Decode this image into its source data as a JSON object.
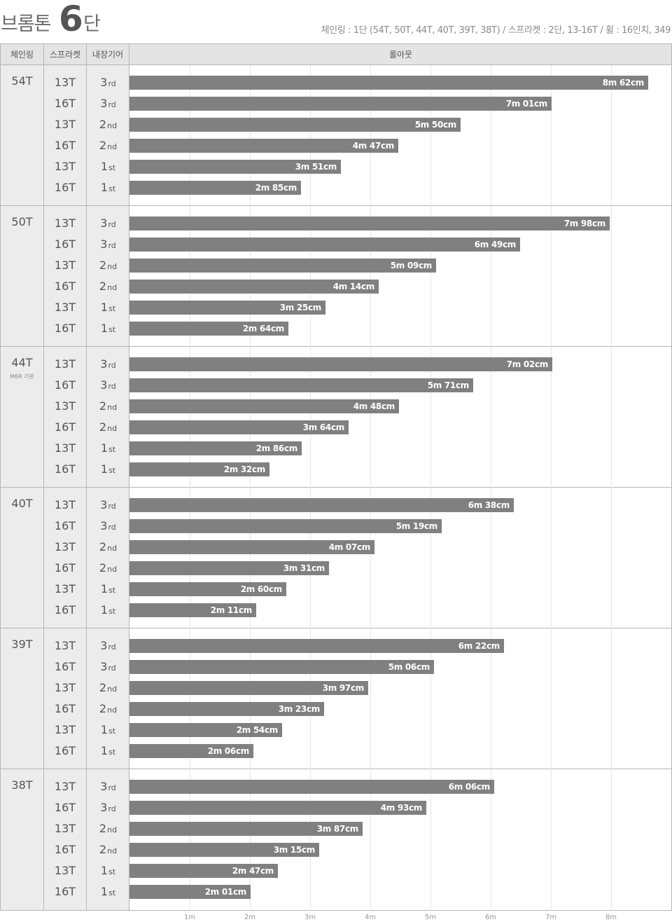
{
  "header": {
    "title_main": "브롬톤",
    "title_num": "6",
    "title_suffix": "단",
    "subtitle": "체인링 : 1단 (54T, 50T, 44T, 40T, 39T, 38T) / 스프라켓 : 2단, 13-16T / 휠 : 16인치, 349"
  },
  "table": {
    "col_chainring": "체인링",
    "col_sprocket": "스프라켓",
    "col_gear": "내장기어",
    "col_rollout": "롤아웃"
  },
  "chart_data": {
    "type": "bar",
    "orientation": "horizontal",
    "xlabel": "롤아웃",
    "xlim": [
      0,
      9
    ],
    "x_ticks": [
      "1m",
      "2m",
      "3m",
      "4m",
      "5m",
      "6m",
      "7m",
      "8m"
    ],
    "grid": true,
    "color": "#808080",
    "groups": [
      {
        "chainring": "54T",
        "note": "",
        "rows": [
          {
            "sprocket": "13T",
            "gear_num": "3",
            "gear_suffix": "rd",
            "value": 8.62,
            "label": "8m 62cm"
          },
          {
            "sprocket": "16T",
            "gear_num": "3",
            "gear_suffix": "rd",
            "value": 7.01,
            "label": "7m 01cm"
          },
          {
            "sprocket": "13T",
            "gear_num": "2",
            "gear_suffix": "nd",
            "value": 5.5,
            "label": "5m 50cm"
          },
          {
            "sprocket": "16T",
            "gear_num": "2",
            "gear_suffix": "nd",
            "value": 4.47,
            "label": "4m 47cm"
          },
          {
            "sprocket": "13T",
            "gear_num": "1",
            "gear_suffix": "st",
            "value": 3.51,
            "label": "3m 51cm"
          },
          {
            "sprocket": "16T",
            "gear_num": "1",
            "gear_suffix": "st",
            "value": 2.85,
            "label": "2m 85cm"
          }
        ]
      },
      {
        "chainring": "50T",
        "note": "",
        "rows": [
          {
            "sprocket": "13T",
            "gear_num": "3",
            "gear_suffix": "rd",
            "value": 7.98,
            "label": "7m 98cm"
          },
          {
            "sprocket": "16T",
            "gear_num": "3",
            "gear_suffix": "rd",
            "value": 6.49,
            "label": "6m 49cm"
          },
          {
            "sprocket": "13T",
            "gear_num": "2",
            "gear_suffix": "nd",
            "value": 5.09,
            "label": "5m 09cm"
          },
          {
            "sprocket": "16T",
            "gear_num": "2",
            "gear_suffix": "nd",
            "value": 4.14,
            "label": "4m 14cm"
          },
          {
            "sprocket": "13T",
            "gear_num": "1",
            "gear_suffix": "st",
            "value": 3.25,
            "label": "3m 25cm"
          },
          {
            "sprocket": "16T",
            "gear_num": "1",
            "gear_suffix": "st",
            "value": 2.64,
            "label": "2m 64cm"
          }
        ]
      },
      {
        "chainring": "44T",
        "note": "M6R 기본",
        "rows": [
          {
            "sprocket": "13T",
            "gear_num": "3",
            "gear_suffix": "rd",
            "value": 7.02,
            "label": "7m 02cm"
          },
          {
            "sprocket": "16T",
            "gear_num": "3",
            "gear_suffix": "rd",
            "value": 5.71,
            "label": "5m 71cm"
          },
          {
            "sprocket": "13T",
            "gear_num": "2",
            "gear_suffix": "nd",
            "value": 4.48,
            "label": "4m 48cm"
          },
          {
            "sprocket": "16T",
            "gear_num": "2",
            "gear_suffix": "nd",
            "value": 3.64,
            "label": "3m 64cm"
          },
          {
            "sprocket": "13T",
            "gear_num": "1",
            "gear_suffix": "st",
            "value": 2.86,
            "label": "2m 86cm"
          },
          {
            "sprocket": "16T",
            "gear_num": "1",
            "gear_suffix": "st",
            "value": 2.32,
            "label": "2m 32cm"
          }
        ]
      },
      {
        "chainring": "40T",
        "note": "",
        "rows": [
          {
            "sprocket": "13T",
            "gear_num": "3",
            "gear_suffix": "rd",
            "value": 6.38,
            "label": "6m 38cm"
          },
          {
            "sprocket": "16T",
            "gear_num": "3",
            "gear_suffix": "rd",
            "value": 5.19,
            "label": "5m 19cm"
          },
          {
            "sprocket": "13T",
            "gear_num": "2",
            "gear_suffix": "nd",
            "value": 4.07,
            "label": "4m 07cm"
          },
          {
            "sprocket": "16T",
            "gear_num": "2",
            "gear_suffix": "nd",
            "value": 3.31,
            "label": "3m 31cm"
          },
          {
            "sprocket": "13T",
            "gear_num": "1",
            "gear_suffix": "st",
            "value": 2.6,
            "label": "2m 60cm"
          },
          {
            "sprocket": "16T",
            "gear_num": "1",
            "gear_suffix": "st",
            "value": 2.11,
            "label": "2m 11cm"
          }
        ]
      },
      {
        "chainring": "39T",
        "note": "",
        "rows": [
          {
            "sprocket": "13T",
            "gear_num": "3",
            "gear_suffix": "rd",
            "value": 6.22,
            "label": "6m 22cm"
          },
          {
            "sprocket": "16T",
            "gear_num": "3",
            "gear_suffix": "rd",
            "value": 5.06,
            "label": "5m 06cm"
          },
          {
            "sprocket": "13T",
            "gear_num": "2",
            "gear_suffix": "nd",
            "value": 3.97,
            "label": "3m 97cm"
          },
          {
            "sprocket": "16T",
            "gear_num": "2",
            "gear_suffix": "nd",
            "value": 3.23,
            "label": "3m 23cm"
          },
          {
            "sprocket": "13T",
            "gear_num": "1",
            "gear_suffix": "st",
            "value": 2.54,
            "label": "2m 54cm"
          },
          {
            "sprocket": "16T",
            "gear_num": "1",
            "gear_suffix": "st",
            "value": 2.06,
            "label": "2m 06cm"
          }
        ]
      },
      {
        "chainring": "38T",
        "note": "",
        "rows": [
          {
            "sprocket": "13T",
            "gear_num": "3",
            "gear_suffix": "rd",
            "value": 6.06,
            "label": "6m 06cm"
          },
          {
            "sprocket": "16T",
            "gear_num": "3",
            "gear_suffix": "rd",
            "value": 4.93,
            "label": "4m 93cm"
          },
          {
            "sprocket": "13T",
            "gear_num": "2",
            "gear_suffix": "nd",
            "value": 3.87,
            "label": "3m 87cm"
          },
          {
            "sprocket": "16T",
            "gear_num": "2",
            "gear_suffix": "nd",
            "value": 3.15,
            "label": "3m 15cm"
          },
          {
            "sprocket": "13T",
            "gear_num": "1",
            "gear_suffix": "st",
            "value": 2.47,
            "label": "2m 47cm"
          },
          {
            "sprocket": "16T",
            "gear_num": "1",
            "gear_suffix": "st",
            "value": 2.01,
            "label": "2m 01cm"
          }
        ]
      }
    ]
  }
}
